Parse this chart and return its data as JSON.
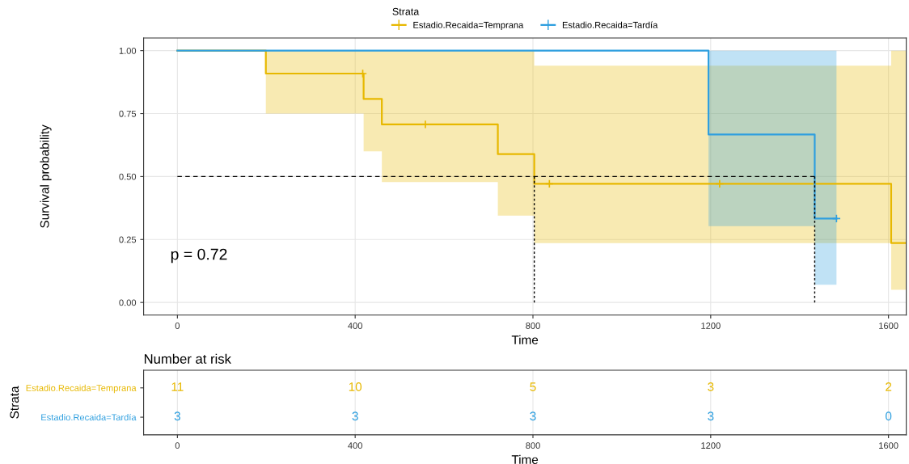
{
  "chart_data": [
    {
      "type": "step",
      "xlabel": "Time",
      "ylabel": "Survival probability",
      "legend_title": "Strata",
      "legend": "top",
      "grid": true,
      "xlim": [
        -76,
        1640
      ],
      "xticks": [
        0,
        400,
        800,
        1200,
        1600
      ],
      "ylim": [
        -0.05,
        1.05
      ],
      "yticks": [
        {
          "value": 0,
          "label": "0.00"
        },
        {
          "value": 0.25,
          "label": "0.25"
        },
        {
          "value": 0.5,
          "label": "0.50"
        },
        {
          "value": 0.75,
          "label": "0.75"
        },
        {
          "value": 1,
          "label": "1.00"
        }
      ],
      "annotations": [
        "p = 0.72"
      ],
      "series": [
        {
          "name": "Estadio.Recaida=Temprana",
          "color": "#e7b800",
          "x": [
            0,
            199,
            419,
            460,
            721,
            803,
            1606,
            1640
          ],
          "values": [
            1,
            0.909,
            0.808,
            0.707,
            0.589,
            0.471,
            0.236,
            0.236
          ],
          "lower": [
            1,
            0.75,
            0.6,
            0.478,
            0.345,
            0.236,
            0.05,
            0.05
          ],
          "upper": [
            1,
            1,
            1,
            1,
            1,
            0.94,
            1,
            1
          ]
        },
        {
          "name": "Estadio.Recaida=Tardía",
          "color": "#2e9fdf",
          "x": [
            0,
            1195,
            1434,
            1483
          ],
          "values": [
            1,
            0.667,
            0.333,
            0.333
          ],
          "lower": [
            1,
            0.303,
            0.07,
            0.07
          ],
          "upper": [
            1,
            1,
            1,
            1
          ]
        },
        {
          "type": "scatter",
          "marker": "cross",
          "color": "#e7b800",
          "x": [
            417,
            558,
            837,
            1220
          ],
          "values": [
            0.909,
            0.707,
            0.471,
            0.471
          ]
        },
        {
          "type": "scatter",
          "marker": "cross",
          "color": "#2e9fdf",
          "x": [
            1483
          ],
          "values": [
            0.333
          ]
        },
        {
          "type": "line",
          "line_style": "dashed",
          "color": "#000000",
          "x": [
            0,
            1434
          ],
          "values": [
            0.5,
            0.5
          ]
        },
        {
          "type": "line",
          "line_style": "dotted",
          "color": "#000000",
          "x": [
            803,
            803
          ],
          "values": [
            0,
            0.5
          ]
        },
        {
          "type": "line",
          "line_style": "dotted",
          "color": "#000000",
          "x": [
            1434,
            1434
          ],
          "values": [
            0,
            0.5
          ]
        }
      ]
    },
    {
      "type": "heatmap",
      "title": "Number at risk",
      "xlabel": "Time",
      "ylabel": "Strata",
      "grid": "x",
      "data_labels": true,
      "categories": [
        "0",
        "400",
        "800",
        "1200",
        "1600"
      ],
      "y_categories": [
        "Estadio.Recaida=Temprana",
        "Estadio.Recaida=Tardía"
      ],
      "colors": [
        "#e7b800",
        "#2e9fdf"
      ],
      "cells": [
        [
          11,
          10,
          5,
          3,
          2
        ],
        [
          3,
          3,
          3,
          3,
          0
        ]
      ]
    }
  ]
}
